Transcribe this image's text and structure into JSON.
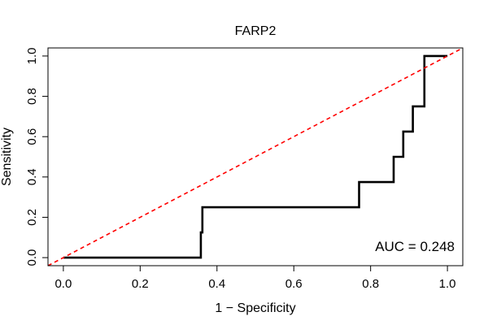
{
  "chart_data": {
    "type": "line",
    "title": "FARP2",
    "xlabel": "1 − Specificity",
    "ylabel": "Sensitivity",
    "xlim": [
      -0.04,
      1.04
    ],
    "ylim": [
      -0.04,
      1.04
    ],
    "x_ticks": [
      0.0,
      0.2,
      0.4,
      0.6,
      0.8,
      1.0
    ],
    "x_tick_labels": [
      "0.0",
      "0.2",
      "0.4",
      "0.6",
      "0.8",
      "1.0"
    ],
    "y_ticks": [
      0.0,
      0.2,
      0.4,
      0.6,
      0.8,
      1.0
    ],
    "y_tick_labels": [
      "0.0",
      "0.2",
      "0.4",
      "0.6",
      "0.8",
      "1.0"
    ],
    "grid": false,
    "annotation": "AUC = 0.248",
    "series": [
      {
        "style": "solid",
        "color": "#000000",
        "x": [
          0.0,
          0.358,
          0.358,
          0.362,
          0.362,
          0.77,
          0.77,
          0.86,
          0.86,
          0.885,
          0.885,
          0.91,
          0.91,
          0.94,
          0.94,
          1.0
        ],
        "y": [
          0.0,
          0.0,
          0.125,
          0.125,
          0.25,
          0.25,
          0.375,
          0.375,
          0.5,
          0.5,
          0.625,
          0.625,
          0.75,
          0.75,
          1.0,
          1.0
        ]
      },
      {
        "style": "dashed",
        "color": "#ff0000",
        "x": [
          -0.04,
          1.04
        ],
        "y": [
          -0.04,
          1.04
        ]
      }
    ]
  }
}
